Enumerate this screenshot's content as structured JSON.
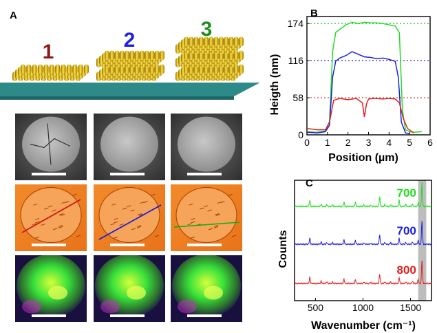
{
  "panels": {
    "a": {
      "letter": "A"
    },
    "b": {
      "letter": "B"
    },
    "c": {
      "letter": "C"
    }
  },
  "structures": [
    {
      "label": "1",
      "color": "#8b1a1a",
      "layers": 1
    },
    {
      "label": "2",
      "color": "#1f1fe6",
      "layers": 2
    },
    {
      "label": "3",
      "color": "#1a8f1a",
      "layers": 3
    }
  ],
  "micrographs": {
    "rows": [
      "sem",
      "afm",
      "raman-map"
    ],
    "line_colors": [
      "#d01010",
      "#1818d8",
      "#10b010"
    ]
  },
  "chart_data": [
    {
      "type": "line",
      "panel": "B",
      "xlabel": "Position (µm)",
      "ylabel": "Heigth (nm)",
      "xlim": [
        0,
        6
      ],
      "ylim": [
        0,
        185
      ],
      "xticks": [
        0,
        1,
        2,
        3,
        4,
        5,
        6
      ],
      "yticks": [
        0,
        58,
        116,
        174
      ],
      "reference_lines": [
        {
          "y": 174,
          "color": "#22cc22"
        },
        {
          "y": 116,
          "color": "#1e1ec8"
        },
        {
          "y": 58,
          "color": "#e01e1e"
        }
      ],
      "series": [
        {
          "color": "#22dd22",
          "x": [
            0,
            0.5,
            0.9,
            1.1,
            1.25,
            1.4,
            1.6,
            1.9,
            2.2,
            2.5,
            2.8,
            3.1,
            3.4,
            3.7,
            4.0,
            4.3,
            4.5,
            4.65,
            4.8,
            5.0,
            5.2,
            5.6
          ],
          "y": [
            5,
            4,
            6,
            20,
            130,
            160,
            165,
            172,
            176,
            174,
            176,
            175,
            175,
            174,
            172,
            170,
            160,
            40,
            8,
            5,
            4,
            5
          ]
        },
        {
          "color": "#1e1ee6",
          "x": [
            0,
            0.5,
            0.9,
            1.1,
            1.25,
            1.4,
            1.6,
            1.9,
            2.2,
            2.5,
            2.8,
            3.1,
            3.4,
            3.7,
            4.0,
            4.3,
            4.45,
            4.6,
            4.8,
            5.0
          ],
          "y": [
            4,
            3,
            5,
            15,
            90,
            115,
            120,
            124,
            130,
            126,
            122,
            121,
            119,
            120,
            118,
            115,
            90,
            20,
            3,
            2
          ]
        },
        {
          "color": "#e01e1e",
          "x": [
            0,
            0.5,
            0.9,
            1.1,
            1.3,
            1.6,
            2.0,
            2.4,
            2.7,
            2.8,
            2.9,
            3.0,
            3.3,
            3.7,
            4.0,
            4.3,
            4.5,
            4.7,
            4.9,
            5.2
          ],
          "y": [
            10,
            8,
            8,
            20,
            54,
            57,
            55,
            57,
            50,
            28,
            48,
            56,
            57,
            56,
            57,
            56,
            50,
            25,
            10,
            3
          ]
        }
      ]
    },
    {
      "type": "line",
      "panel": "C",
      "xlabel": "Wavenumber (cm⁻¹)",
      "ylabel": "Counts",
      "xlim": [
        280,
        1720
      ],
      "xticks": [
        500,
        1000,
        1500
      ],
      "highlight_band": [
        1580,
        1665
      ],
      "series": [
        {
          "label": "700",
          "color": "#22dd22",
          "offset": 2
        },
        {
          "label": "700",
          "color": "#1e1ee6",
          "offset": 1
        },
        {
          "label": "800",
          "color": "#e01e1e",
          "offset": 0
        }
      ],
      "peaks": [
        {
          "x": 440,
          "h": 0.5
        },
        {
          "x": 560,
          "h": 0.18
        },
        {
          "x": 620,
          "h": 0.15
        },
        {
          "x": 680,
          "h": 0.12
        },
        {
          "x": 800,
          "h": 0.35
        },
        {
          "x": 920,
          "h": 0.3
        },
        {
          "x": 1010,
          "h": 0.12
        },
        {
          "x": 1080,
          "h": 0.1
        },
        {
          "x": 1175,
          "h": 0.75
        },
        {
          "x": 1230,
          "h": 0.15
        },
        {
          "x": 1290,
          "h": 0.12
        },
        {
          "x": 1380,
          "h": 0.5
        },
        {
          "x": 1450,
          "h": 0.15
        },
        {
          "x": 1520,
          "h": 0.2
        },
        {
          "x": 1580,
          "h": 0.3
        },
        {
          "x": 1620,
          "h": 1.9
        }
      ]
    }
  ]
}
